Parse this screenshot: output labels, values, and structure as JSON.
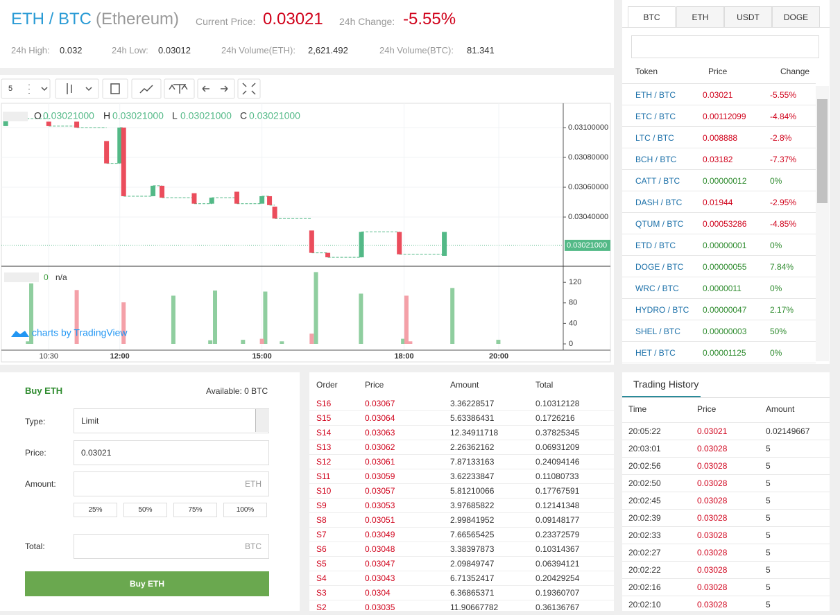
{
  "header": {
    "pair": "ETH / BTC",
    "name": "(Ethereum)",
    "price_label": "Current Price:",
    "price": "0.03021",
    "change_label": "24h Change:",
    "change": "-5.55%",
    "stats": [
      {
        "label": "24h High:",
        "value": "0.032"
      },
      {
        "label": "24h Low:",
        "value": "0.03012"
      },
      {
        "label": "24h Volume(ETH):",
        "value": "2,621.492"
      },
      {
        "label": "24h Volume(BTC):",
        "value": "81.341"
      }
    ]
  },
  "chart": {
    "interval": "5",
    "ohlc": [
      {
        "key": "O",
        "value": "0.03021000"
      },
      {
        "key": "H",
        "value": "0.03021000"
      },
      {
        "key": "L",
        "value": "0.03021000"
      },
      {
        "key": "C",
        "value": "0.03021000"
      }
    ],
    "up_color": "#53b987",
    "down_color": "#eb4d5c",
    "xlim": [
      9.5,
      21.36
    ],
    "xticks": [
      {
        "value": 10.5,
        "label": "10:30"
      },
      {
        "value": 12,
        "label": "12:00"
      },
      {
        "value": 15,
        "label": "15:00"
      },
      {
        "value": 18,
        "label": "18:00"
      },
      {
        "value": 20,
        "label": "20:00"
      }
    ],
    "ylim": [
      0.03007,
      0.031163
    ],
    "yticks": [
      {
        "value": 0.031,
        "label": "0.03100000"
      },
      {
        "value": 0.0308,
        "label": "0.03080000"
      },
      {
        "value": 0.0306,
        "label": "0.03060000"
      },
      {
        "value": 0.0304,
        "label": "0.03040000"
      }
    ],
    "last_price": {
      "value": 0.03021,
      "label": "0.03021000"
    },
    "candles": [
      {
        "t": 9.59,
        "open": 0.03101,
        "close": 0.03106
      },
      {
        "t": 10.5,
        "open": 0.03104,
        "close": 0.03101
      },
      {
        "t": 11.09,
        "open": 0.03104,
        "close": 0.031
      },
      {
        "t": 11.72,
        "open": 0.03091,
        "close": 0.03076
      },
      {
        "t": 12.0,
        "open": 0.03076,
        "close": 0.031
      },
      {
        "t": 12.08,
        "open": 0.031,
        "close": 0.03054
      },
      {
        "t": 12.7,
        "open": 0.03054,
        "close": 0.03061
      },
      {
        "t": 12.89,
        "open": 0.03061,
        "close": 0.03053
      },
      {
        "t": 13.57,
        "open": 0.03056,
        "close": 0.03049
      },
      {
        "t": 13.94,
        "open": 0.03049,
        "close": 0.03053
      },
      {
        "t": 14.47,
        "open": 0.03057,
        "close": 0.03049
      },
      {
        "t": 15.0,
        "open": 0.03049,
        "close": 0.03054
      },
      {
        "t": 15.16,
        "open": 0.03054,
        "close": 0.03048
      },
      {
        "t": 15.27,
        "open": 0.03047,
        "close": 0.03039
      },
      {
        "t": 16.05,
        "open": 0.03031,
        "close": 0.03016
      },
      {
        "t": 16.39,
        "open": 0.03016,
        "close": 0.03013
      },
      {
        "t": 17.1,
        "open": 0.03013,
        "close": 0.0303
      },
      {
        "t": 17.9,
        "open": 0.0303,
        "close": 0.03015
      },
      {
        "t": 18.85,
        "open": 0.03014,
        "close": 0.0303
      }
    ],
    "volume": {
      "legend_value": "0",
      "legend_text": "n/a",
      "ylim": [
        0,
        150
      ],
      "yticks": [
        0,
        40,
        80,
        120
      ],
      "up": {
        "color": "#8fce9f",
        "t": [
          10.06,
          10.13,
          13.13,
          13.91,
          14.01,
          14.6,
          15.07,
          15.42,
          16.14,
          17.09,
          17.98,
          19.02,
          19.99
        ],
        "values": [
          5,
          118,
          94,
          7,
          104,
          8,
          102,
          5,
          140,
          98,
          10,
          109,
          8
        ]
      },
      "down": {
        "color": "#f4a0a8",
        "t": [
          11.09,
          12.08,
          15.0,
          16.05,
          18.05,
          18.13
        ],
        "values": [
          105,
          81,
          10,
          20,
          94,
          5
        ]
      }
    },
    "watermark": "charts by TradingView"
  },
  "market": {
    "tabs": [
      "BTC",
      "ETH",
      "USDT",
      "DOGE"
    ],
    "headers": [
      "Token",
      "Price",
      "Change"
    ],
    "rows": [
      [
        "ETH / BTC",
        "0.03021",
        "-5.55%"
      ],
      [
        "ETC / BTC",
        "0.00112099",
        "-4.84%"
      ],
      [
        "LTC / BTC",
        "0.008888",
        "-2.8%"
      ],
      [
        "BCH / BTC",
        "0.03182",
        "-7.37%"
      ],
      [
        "CATT / BTC",
        "0.00000012",
        "0%"
      ],
      [
        "DASH / BTC",
        "0.01944",
        "-2.95%"
      ],
      [
        "QTUM / BTC",
        "0.00053286",
        "-4.85%"
      ],
      [
        "ETD / BTC",
        "0.00000001",
        "0%"
      ],
      [
        "DOGE / BTC",
        "0.00000055",
        "7.84%"
      ],
      [
        "WRC / BTC",
        "0.0000011",
        "0%"
      ],
      [
        "HYDRO / BTC",
        "0.00000047",
        "2.17%"
      ],
      [
        "SHEL / BTC",
        "0.00000003",
        "50%"
      ],
      [
        "HET / BTC",
        "0.00001125",
        "0%"
      ]
    ]
  },
  "buy": {
    "title": "Buy ETH",
    "available": "Available: 0 BTC",
    "type_label": "Type:",
    "type_value": "Limit",
    "price_label": "Price:",
    "price_value": "0.03021",
    "amount_label": "Amount:",
    "amount_unit": "ETH",
    "percents": [
      "25%",
      "50%",
      "75%",
      "100%"
    ],
    "total_label": "Total:",
    "total_unit": "BTC",
    "button": "Buy ETH"
  },
  "orderbook": {
    "headers": [
      "Order",
      "Price",
      "Amount",
      "Total"
    ],
    "rows": [
      [
        "S16",
        "0.03067",
        "3.36228517",
        "0.10312128"
      ],
      [
        "S15",
        "0.03064",
        "5.63386431",
        "0.1726216"
      ],
      [
        "S14",
        "0.03063",
        "12.34911718",
        "0.37825345"
      ],
      [
        "S13",
        "0.03062",
        "2.26362162",
        "0.06931209"
      ],
      [
        "S12",
        "0.03061",
        "7.87133163",
        "0.24094146"
      ],
      [
        "S11",
        "0.03059",
        "3.62233847",
        "0.11080733"
      ],
      [
        "S10",
        "0.03057",
        "5.81210066",
        "0.17767591"
      ],
      [
        "S9",
        "0.03053",
        "3.97685822",
        "0.12141348"
      ],
      [
        "S8",
        "0.03051",
        "2.99841952",
        "0.09148177"
      ],
      [
        "S7",
        "0.03049",
        "7.66565425",
        "0.23372579"
      ],
      [
        "S6",
        "0.03048",
        "3.38397873",
        "0.10314367"
      ],
      [
        "S5",
        "0.03047",
        "2.09849747",
        "0.06394121"
      ],
      [
        "S4",
        "0.03043",
        "6.71352417",
        "0.20429254"
      ],
      [
        "S3",
        "0.0304",
        "6.36865371",
        "0.19360707"
      ],
      [
        "S2",
        "0.03035",
        "11.90667782",
        "0.36136767"
      ]
    ]
  },
  "history": {
    "title": "Trading History",
    "headers": [
      "Time",
      "Price",
      "Amount"
    ],
    "rows": [
      [
        "20:05:22",
        "0.03021",
        "0.02149667"
      ],
      [
        "20:03:01",
        "0.03028",
        "5"
      ],
      [
        "20:02:56",
        "0.03028",
        "5"
      ],
      [
        "20:02:50",
        "0.03028",
        "5"
      ],
      [
        "20:02:45",
        "0.03028",
        "5"
      ],
      [
        "20:02:39",
        "0.03028",
        "5"
      ],
      [
        "20:02:33",
        "0.03028",
        "5"
      ],
      [
        "20:02:27",
        "0.03028",
        "5"
      ],
      [
        "20:02:22",
        "0.03028",
        "5"
      ],
      [
        "20:02:16",
        "0.03028",
        "5"
      ],
      [
        "20:02:10",
        "0.03028",
        "5"
      ]
    ]
  }
}
